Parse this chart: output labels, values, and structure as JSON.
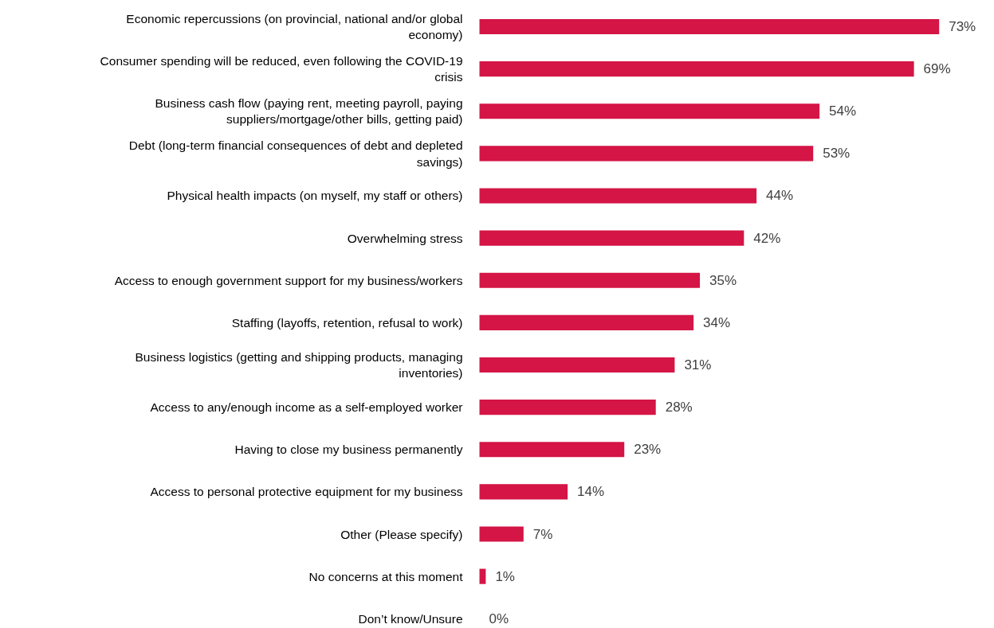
{
  "chart_data": {
    "type": "bar",
    "orientation": "horizontal",
    "color": "#d41546",
    "categories": [
      "Economic repercussions (on provincial, national and/or global economy)",
      "Consumer spending will be reduced, even following the COVID-19 crisis",
      "Business cash flow (paying rent, meeting payroll, paying suppliers/mortgage/other bills, getting paid)",
      "Debt (long-term financial consequences of debt and depleted savings)",
      "Physical health impacts (on myself, my staff or others)",
      "Overwhelming stress",
      "Access to enough government support for my business/workers",
      "Staffing (layoffs, retention, refusal to work)",
      "Business logistics (getting and shipping products, managing inventories)",
      "Access to any/enough income as a self-employed worker",
      "Having to close my business permanently",
      "Access to personal protective equipment for my business",
      "Other (Please specify)",
      "No concerns at this moment",
      "Don’t know/Unsure"
    ],
    "values": [
      73,
      69,
      54,
      53,
      44,
      42,
      35,
      34,
      31,
      28,
      23,
      14,
      7,
      1,
      0
    ],
    "value_labels": [
      "73%",
      "69%",
      "54%",
      "53%",
      "44%",
      "42%",
      "35%",
      "34%",
      "31%",
      "28%",
      "23%",
      "14%",
      "7%",
      "1%",
      "0%"
    ]
  }
}
